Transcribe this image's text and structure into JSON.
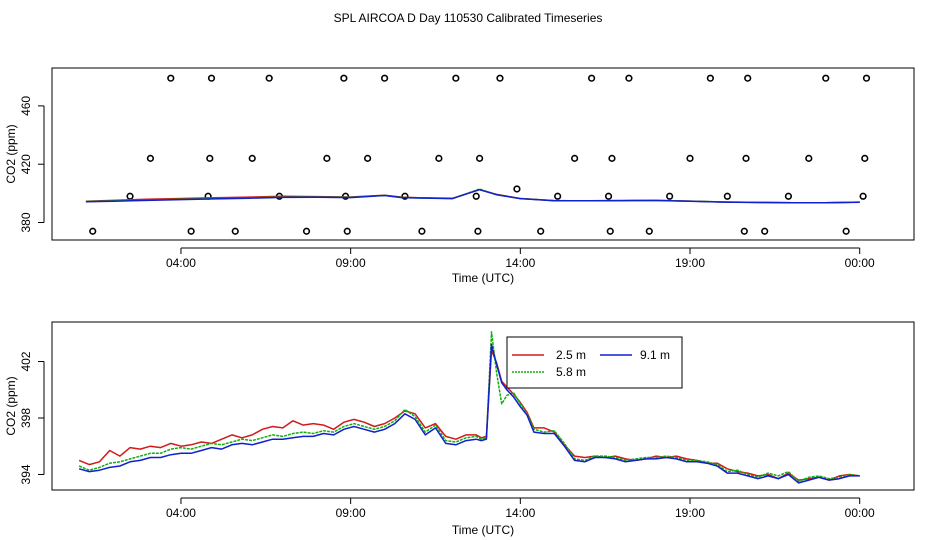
{
  "title": "SPL AIRCOA D  Day 110530  Calibrated Timeseries",
  "colors": {
    "s25": "#d21a1a",
    "s58": "#10b010",
    "s91": "#1020d0",
    "frame": "#000000"
  },
  "chart_data": [
    {
      "id": "top",
      "type": "line",
      "xlabel": "Time (UTC)",
      "ylabel": "CO2 (ppm)",
      "xlim": [
        -0.8,
        24.6
      ],
      "ylim": [
        368,
        486
      ],
      "xticks": [
        {
          "value": 3,
          "label": "04:00"
        },
        {
          "value": 8,
          "label": "09:00"
        },
        {
          "value": 13,
          "label": "14:00"
        },
        {
          "value": 18,
          "label": "19:00"
        },
        {
          "value": 23,
          "label": "00:00"
        }
      ],
      "yticks": [
        {
          "value": 380,
          "label": "380"
        },
        {
          "value": 420,
          "label": "420"
        },
        {
          "value": 460,
          "label": "460"
        }
      ],
      "series": [
        {
          "name": "2.5 m",
          "color": "#d21a1a",
          "x": [
            0.2,
            1.0,
            2.0,
            3.0,
            4.0,
            5.0,
            6.0,
            7.0,
            8.0,
            9.0,
            9.5,
            10.0,
            11.0,
            11.8,
            12.3,
            13.0,
            14.0,
            15.0,
            16.0,
            17.0,
            18.0,
            19.0,
            20.0,
            21.0,
            22.0,
            23.0
          ],
          "y": [
            394.6,
            395.2,
            396,
            396.5,
            397,
            397.4,
            398,
            397.8,
            397.5,
            398.7,
            397.4,
            397,
            396.6,
            402.5,
            399.3,
            396.5,
            395,
            394.9,
            395,
            395.2,
            394.7,
            394.1,
            393.8,
            393.6,
            393.6,
            394
          ]
        },
        {
          "name": "5.8 m",
          "color": "#10b010",
          "x": [
            0.2,
            1.0,
            2.0,
            3.0,
            4.0,
            5.0,
            6.0,
            7.0,
            8.0,
            9.0,
            9.5,
            10.0,
            11.0,
            11.8,
            12.3,
            13.0,
            14.0,
            15.0,
            16.0,
            17.0,
            18.0,
            19.0,
            20.0,
            21.0,
            22.0,
            23.0
          ],
          "y": [
            394.4,
            394.8,
            395.4,
            395.9,
            396.4,
            396.9,
            397.4,
            397.5,
            397.3,
            398.6,
            397.2,
            396.9,
            396.5,
            402.9,
            399,
            396.5,
            395,
            394.9,
            395,
            395.2,
            394.7,
            394.1,
            393.8,
            393.6,
            393.6,
            394
          ]
        },
        {
          "name": "9.1 m",
          "color": "#1020d0",
          "x": [
            0.2,
            1.0,
            2.0,
            3.0,
            4.0,
            5.0,
            6.0,
            7.0,
            8.0,
            9.0,
            9.5,
            10.0,
            11.0,
            11.8,
            12.3,
            13.0,
            14.0,
            15.0,
            16.0,
            17.0,
            18.0,
            19.0,
            20.0,
            21.0,
            22.0,
            23.0
          ],
          "y": [
            394.3,
            394.6,
            395.2,
            395.7,
            396.2,
            396.7,
            397.2,
            397.3,
            397.1,
            398.5,
            397.1,
            396.8,
            396.4,
            402.6,
            399.1,
            396.4,
            394.9,
            394.9,
            395,
            395.1,
            394.6,
            394,
            393.7,
            393.5,
            393.5,
            393.9
          ]
        }
      ],
      "points": {
        "name": "calibration / reference points",
        "x": [
          0.4,
          1.5,
          2.1,
          2.7,
          3.3,
          3.8,
          3.85,
          3.9,
          4.6,
          5.1,
          5.6,
          5.9,
          6.7,
          7.3,
          7.8,
          7.85,
          7.9,
          8.5,
          9.0,
          9.6,
          10.1,
          10.6,
          11.1,
          11.7,
          11.75,
          11.8,
          12.4,
          12.9,
          13.6,
          14.1,
          14.6,
          15.1,
          15.6,
          15.65,
          15.7,
          16.2,
          16.8,
          17.4,
          18.0,
          18.6,
          19.1,
          19.6,
          19.65,
          19.7,
          20.2,
          20.9,
          21.5,
          22.0,
          22.6,
          23.1,
          23.15,
          23.2
        ],
        "y": [
          374,
          398,
          424,
          479,
          374,
          398,
          424,
          479,
          374,
          424,
          479,
          398,
          374,
          424,
          479,
          398,
          374,
          424,
          479,
          398,
          374,
          424,
          479,
          398,
          374,
          424,
          479,
          403,
          374,
          398,
          424,
          479,
          398,
          374,
          424,
          479,
          374,
          398,
          424,
          479,
          398,
          374,
          424,
          479,
          374,
          398,
          424,
          479,
          374,
          398,
          424,
          479
        ]
      }
    },
    {
      "id": "bottom",
      "type": "line",
      "xlabel": "Time (UTC)",
      "ylabel": "CO2 (ppm)",
      "xlim": [
        -0.8,
        24.6
      ],
      "ylim": [
        392.9,
        404.8
      ],
      "xticks": [
        {
          "value": 3,
          "label": "04:00"
        },
        {
          "value": 8,
          "label": "09:00"
        },
        {
          "value": 13,
          "label": "14:00"
        },
        {
          "value": 18,
          "label": "19:00"
        },
        {
          "value": 23,
          "label": "00:00"
        }
      ],
      "yticks": [
        {
          "value": 394,
          "label": "394"
        },
        {
          "value": 398,
          "label": "398"
        },
        {
          "value": 402,
          "label": "402"
        }
      ],
      "legend": {
        "placement": "top-center",
        "entries": [
          {
            "label": "2.5 m",
            "color": "#d21a1a"
          },
          {
            "label": "9.1 m",
            "color": "#1020d0"
          },
          {
            "label": "5.8 m",
            "color": "#10b010"
          }
        ]
      },
      "series": [
        {
          "name": "2.5 m",
          "color": "#d21a1a",
          "x": [
            0.0,
            0.3,
            0.6,
            0.9,
            1.2,
            1.5,
            1.8,
            2.1,
            2.4,
            2.7,
            3.0,
            3.3,
            3.6,
            3.9,
            4.2,
            4.5,
            4.8,
            5.1,
            5.4,
            5.7,
            6.0,
            6.3,
            6.6,
            6.9,
            7.2,
            7.5,
            7.8,
            8.1,
            8.4,
            8.7,
            9.0,
            9.3,
            9.6,
            9.9,
            10.2,
            10.5,
            10.8,
            11.1,
            11.4,
            11.7,
            11.85,
            12.0,
            12.15,
            12.3,
            12.45,
            12.6,
            12.8,
            13.0,
            13.2,
            13.4,
            13.7,
            14.0,
            14.3,
            14.6,
            14.9,
            15.2,
            15.5,
            15.8,
            16.1,
            16.4,
            16.7,
            17.0,
            17.3,
            17.6,
            17.9,
            18.2,
            18.5,
            18.8,
            19.1,
            19.4,
            19.7,
            20.0,
            20.3,
            20.6,
            20.9,
            21.2,
            21.5,
            21.8,
            22.1,
            22.4,
            22.7,
            23.0
          ],
          "y": [
            395.0,
            394.7,
            394.9,
            395.7,
            395.3,
            395.9,
            395.8,
            396.0,
            395.9,
            396.2,
            396.0,
            396.1,
            396.3,
            396.2,
            396.5,
            396.8,
            396.6,
            396.8,
            397.2,
            397.4,
            397.3,
            397.8,
            397.5,
            397.6,
            397.5,
            397.2,
            397.7,
            397.9,
            397.7,
            397.4,
            397.6,
            398.0,
            398.5,
            398.3,
            397.3,
            397.6,
            396.7,
            396.5,
            396.8,
            396.8,
            396.6,
            396.7,
            402.8,
            401.9,
            400.6,
            400.2,
            399.7,
            399.1,
            398.4,
            397.3,
            397.3,
            397.0,
            396.1,
            395.3,
            395.2,
            395.3,
            395.2,
            395.3,
            395.1,
            395.0,
            395.1,
            395.3,
            395.2,
            395.3,
            395.1,
            395.0,
            394.8,
            394.8,
            394.4,
            394.2,
            394.1,
            393.9,
            394.0,
            393.7,
            394.1,
            393.6,
            393.7,
            393.8,
            393.6,
            393.9,
            394.0,
            393.9
          ]
        },
        {
          "name": "5.8 m",
          "color": "#10b010",
          "x": [
            0.0,
            0.3,
            0.6,
            0.9,
            1.2,
            1.5,
            1.8,
            2.1,
            2.4,
            2.7,
            3.0,
            3.3,
            3.6,
            3.9,
            4.2,
            4.5,
            4.8,
            5.1,
            5.4,
            5.7,
            6.0,
            6.3,
            6.6,
            6.9,
            7.2,
            7.5,
            7.8,
            8.1,
            8.4,
            8.7,
            9.0,
            9.3,
            9.6,
            9.9,
            10.2,
            10.5,
            10.8,
            11.1,
            11.4,
            11.7,
            11.85,
            12.0,
            12.15,
            12.3,
            12.45,
            12.6,
            12.8,
            13.0,
            13.2,
            13.4,
            13.7,
            14.0,
            14.3,
            14.6,
            14.9,
            15.2,
            15.5,
            15.8,
            16.1,
            16.4,
            16.7,
            17.0,
            17.3,
            17.6,
            17.9,
            18.2,
            18.5,
            18.8,
            19.1,
            19.4,
            19.7,
            20.0,
            20.3,
            20.6,
            20.9,
            21.2,
            21.5,
            21.8,
            22.1,
            22.4,
            22.7,
            23.0
          ],
          "y": [
            394.6,
            394.3,
            394.5,
            394.8,
            394.9,
            395.1,
            395.3,
            395.5,
            395.5,
            395.8,
            395.9,
            395.8,
            396.0,
            396.2,
            396.1,
            396.3,
            396.5,
            396.4,
            396.6,
            396.8,
            396.7,
            396.9,
            397.0,
            396.9,
            397.1,
            397.0,
            397.4,
            397.6,
            397.4,
            397.2,
            397.4,
            397.8,
            398.6,
            398.1,
            397.0,
            397.5,
            396.4,
            396.3,
            396.6,
            396.7,
            396.5,
            396.6,
            404.1,
            401.2,
            399.0,
            399.6,
            399.8,
            399.0,
            398.3,
            397.2,
            397.0,
            397.1,
            396.2,
            395.1,
            395.0,
            395.3,
            395.3,
            395.2,
            395.0,
            395.1,
            395.2,
            395.2,
            395.3,
            395.2,
            395.0,
            395.0,
            394.9,
            394.7,
            394.2,
            394.3,
            394.0,
            393.8,
            394.1,
            393.9,
            394.2,
            393.5,
            393.8,
            393.9,
            393.7,
            393.8,
            394.0,
            393.9
          ]
        },
        {
          "name": "9.1 m",
          "color": "#1020d0",
          "x": [
            0.0,
            0.3,
            0.6,
            0.9,
            1.2,
            1.5,
            1.8,
            2.1,
            2.4,
            2.7,
            3.0,
            3.3,
            3.6,
            3.9,
            4.2,
            4.5,
            4.8,
            5.1,
            5.4,
            5.7,
            6.0,
            6.3,
            6.6,
            6.9,
            7.2,
            7.5,
            7.8,
            8.1,
            8.4,
            8.7,
            9.0,
            9.3,
            9.6,
            9.9,
            10.2,
            10.5,
            10.8,
            11.1,
            11.4,
            11.7,
            11.85,
            12.0,
            12.15,
            12.3,
            12.45,
            12.6,
            12.8,
            13.0,
            13.2,
            13.4,
            13.7,
            14.0,
            14.3,
            14.6,
            14.9,
            15.2,
            15.5,
            15.8,
            16.1,
            16.4,
            16.7,
            17.0,
            17.3,
            17.6,
            17.9,
            18.2,
            18.5,
            18.8,
            19.1,
            19.4,
            19.7,
            20.0,
            20.3,
            20.6,
            20.9,
            21.2,
            21.5,
            21.8,
            22.1,
            22.4,
            22.7,
            23.0
          ],
          "y": [
            394.4,
            394.2,
            394.3,
            394.5,
            394.6,
            394.9,
            395.0,
            395.2,
            395.2,
            395.4,
            395.5,
            395.5,
            395.7,
            395.9,
            395.8,
            396.1,
            396.2,
            396.1,
            396.3,
            396.5,
            396.5,
            396.6,
            396.7,
            396.7,
            396.9,
            396.8,
            397.2,
            397.4,
            397.2,
            397.0,
            397.2,
            397.6,
            398.3,
            397.9,
            396.8,
            397.3,
            396.2,
            396.1,
            396.4,
            396.5,
            396.4,
            396.5,
            403.2,
            401.8,
            400.5,
            400.0,
            399.5,
            398.8,
            398.2,
            397.0,
            396.9,
            396.9,
            396.0,
            395.0,
            394.9,
            395.2,
            395.2,
            395.1,
            394.9,
            395.0,
            395.1,
            395.1,
            395.2,
            395.1,
            394.9,
            394.9,
            394.8,
            394.6,
            394.1,
            394.1,
            393.9,
            393.7,
            393.9,
            393.7,
            394.0,
            393.4,
            393.6,
            393.8,
            393.6,
            393.7,
            393.9,
            393.9
          ]
        }
      ]
    }
  ]
}
